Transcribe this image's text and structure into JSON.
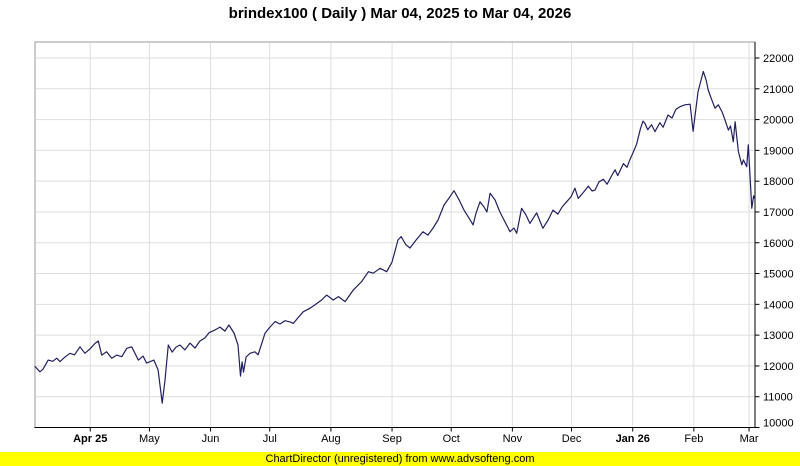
{
  "title": "brindex100 ( Daily ) Mar 04, 2025 to Mar 04, 2026",
  "footer": {
    "text": "ChartDirector (unregistered) from www.advsofteng.com"
  },
  "colors": {
    "background": "#ffffff",
    "title": "#000000",
    "line": "#202060",
    "grid": "#dedede",
    "plot_border": "#9a9a9a",
    "axis": "#000000",
    "tick_text": "#000000",
    "footer_bg": "#ffff00",
    "footer_text": "#000000"
  },
  "chart_data": {
    "type": "line",
    "title": "brindex100 ( Daily ) Mar 04, 2025 to Mar 04, 2026",
    "series_name": "brindex100",
    "legend": "none",
    "grid": true,
    "x_axis": {
      "unit": "days since Mar 04, 2025",
      "range": [
        0,
        365
      ],
      "ticks": [
        {
          "day": 28,
          "label": "Apr 25",
          "bold": true
        },
        {
          "day": 58,
          "label": "May",
          "bold": false
        },
        {
          "day": 89,
          "label": "Jun",
          "bold": false
        },
        {
          "day": 119,
          "label": "Jul",
          "bold": false
        },
        {
          "day": 150,
          "label": "Aug",
          "bold": false
        },
        {
          "day": 181,
          "label": "Sep",
          "bold": false
        },
        {
          "day": 211,
          "label": "Oct",
          "bold": false
        },
        {
          "day": 242,
          "label": "Nov",
          "bold": false
        },
        {
          "day": 272,
          "label": "Dec",
          "bold": false
        },
        {
          "day": 303,
          "label": "Jan 26",
          "bold": true
        },
        {
          "day": 334,
          "label": "Feb",
          "bold": false
        },
        {
          "day": 362,
          "label": "Mar",
          "bold": false
        }
      ]
    },
    "y_axis": {
      "range": [
        10000,
        22000
      ],
      "tick_step": 1000,
      "ticks": [
        10000,
        11000,
        12000,
        13000,
        14000,
        15000,
        16000,
        17000,
        18000,
        19000,
        20000,
        21000,
        22000
      ],
      "side": "right"
    },
    "points": [
      [
        0,
        11980
      ],
      [
        2.5,
        11810
      ],
      [
        4,
        11890
      ],
      [
        6.7,
        12190
      ],
      [
        9,
        12150
      ],
      [
        11,
        12250
      ],
      [
        12.7,
        12140
      ],
      [
        15,
        12280
      ],
      [
        17.7,
        12410
      ],
      [
        20,
        12360
      ],
      [
        22.8,
        12620
      ],
      [
        25.3,
        12410
      ],
      [
        28,
        12560
      ],
      [
        30.4,
        12730
      ],
      [
        32.1,
        12810
      ],
      [
        33.8,
        12350
      ],
      [
        36.3,
        12460
      ],
      [
        38.9,
        12250
      ],
      [
        41.4,
        12350
      ],
      [
        44,
        12300
      ],
      [
        46.5,
        12570
      ],
      [
        49,
        12620
      ],
      [
        52.4,
        12190
      ],
      [
        54.8,
        12320
      ],
      [
        56.6,
        12090
      ],
      [
        60.3,
        12190
      ],
      [
        62.4,
        11870
      ],
      [
        64.5,
        10790
      ],
      [
        65.9,
        11540
      ],
      [
        67.6,
        12680
      ],
      [
        69.5,
        12450
      ],
      [
        71.5,
        12610
      ],
      [
        73.5,
        12680
      ],
      [
        76,
        12520
      ],
      [
        78.6,
        12740
      ],
      [
        81.1,
        12580
      ],
      [
        83.6,
        12810
      ],
      [
        86.2,
        12910
      ],
      [
        88.2,
        13080
      ],
      [
        91.3,
        13170
      ],
      [
        93.8,
        13260
      ],
      [
        96.3,
        13130
      ],
      [
        98.3,
        13330
      ],
      [
        100.9,
        13070
      ],
      [
        102.9,
        12680
      ],
      [
        104.2,
        11670
      ],
      [
        105,
        12130
      ],
      [
        105.7,
        11800
      ],
      [
        107,
        12290
      ],
      [
        109,
        12410
      ],
      [
        111.5,
        12460
      ],
      [
        113.1,
        12360
      ],
      [
        116.6,
        13060
      ],
      [
        119.1,
        13260
      ],
      [
        121.7,
        13440
      ],
      [
        124.2,
        13360
      ],
      [
        126.7,
        13470
      ],
      [
        129.3,
        13430
      ],
      [
        131,
        13380
      ],
      [
        133.3,
        13560
      ],
      [
        136,
        13760
      ],
      [
        139.4,
        13870
      ],
      [
        141.9,
        13980
      ],
      [
        145.3,
        14140
      ],
      [
        147.9,
        14300
      ],
      [
        151.2,
        14140
      ],
      [
        153.8,
        14250
      ],
      [
        157.2,
        14090
      ],
      [
        161.4,
        14470
      ],
      [
        165.6,
        14740
      ],
      [
        169,
        15060
      ],
      [
        171.5,
        15010
      ],
      [
        174.9,
        15170
      ],
      [
        178.3,
        15060
      ],
      [
        181,
        15370
      ],
      [
        184,
        16090
      ],
      [
        185.6,
        16200
      ],
      [
        188.1,
        15930
      ],
      [
        190.1,
        15830
      ],
      [
        193.2,
        16090
      ],
      [
        196.7,
        16360
      ],
      [
        199.2,
        16250
      ],
      [
        201.8,
        16480
      ],
      [
        204.3,
        16740
      ],
      [
        207.4,
        17230
      ],
      [
        209.9,
        17450
      ],
      [
        212.4,
        17690
      ],
      [
        215,
        17390
      ],
      [
        217.5,
        17060
      ],
      [
        220,
        16800
      ],
      [
        222.1,
        16580
      ],
      [
        223.6,
        16970
      ],
      [
        225.6,
        17330
      ],
      [
        227.6,
        17160
      ],
      [
        229.1,
        17000
      ],
      [
        230.7,
        17610
      ],
      [
        233.2,
        17390
      ],
      [
        235.7,
        17000
      ],
      [
        238.3,
        16670
      ],
      [
        240.8,
        16360
      ],
      [
        242.8,
        16480
      ],
      [
        244.2,
        16310
      ],
      [
        246.7,
        17120
      ],
      [
        248.9,
        16900
      ],
      [
        250.9,
        16630
      ],
      [
        254.3,
        16970
      ],
      [
        257.5,
        16470
      ],
      [
        260.1,
        16740
      ],
      [
        262.6,
        17060
      ],
      [
        265.1,
        16930
      ],
      [
        267.2,
        17160
      ],
      [
        269.5,
        17330
      ],
      [
        271.7,
        17490
      ],
      [
        273.7,
        17770
      ],
      [
        275.4,
        17440
      ],
      [
        277.8,
        17620
      ],
      [
        280.5,
        17840
      ],
      [
        282.4,
        17680
      ],
      [
        283.9,
        17710
      ],
      [
        285.9,
        17980
      ],
      [
        288.1,
        18060
      ],
      [
        290,
        17900
      ],
      [
        293.2,
        18280
      ],
      [
        294.1,
        18370
      ],
      [
        295.4,
        18180
      ],
      [
        298.3,
        18570
      ],
      [
        300.1,
        18450
      ],
      [
        301.6,
        18700
      ],
      [
        303,
        18900
      ],
      [
        305,
        19200
      ],
      [
        306.9,
        19700
      ],
      [
        308.2,
        19950
      ],
      [
        309.2,
        19880
      ],
      [
        310.6,
        19670
      ],
      [
        312.6,
        19830
      ],
      [
        314.3,
        19610
      ],
      [
        316.8,
        19900
      ],
      [
        318.4,
        19750
      ],
      [
        320.9,
        20150
      ],
      [
        322.9,
        20050
      ],
      [
        324.9,
        20330
      ],
      [
        327,
        20420
      ],
      [
        329.5,
        20480
      ],
      [
        332.1,
        20500
      ],
      [
        333.6,
        19620
      ],
      [
        336.1,
        20900
      ],
      [
        338.8,
        21560
      ],
      [
        340.2,
        21290
      ],
      [
        341.3,
        20960
      ],
      [
        343.1,
        20640
      ],
      [
        344.7,
        20370
      ],
      [
        346.4,
        20480
      ],
      [
        348.3,
        20250
      ],
      [
        349.8,
        19990
      ],
      [
        351.5,
        19660
      ],
      [
        352.6,
        19790
      ],
      [
        354,
        19280
      ],
      [
        354.9,
        19930
      ],
      [
        356.6,
        18960
      ],
      [
        358.3,
        18530
      ],
      [
        359.1,
        18690
      ],
      [
        360.8,
        18470
      ],
      [
        361.6,
        19180
      ],
      [
        363.4,
        17120
      ],
      [
        364.3,
        17520
      ],
      [
        365,
        17420
      ]
    ]
  }
}
